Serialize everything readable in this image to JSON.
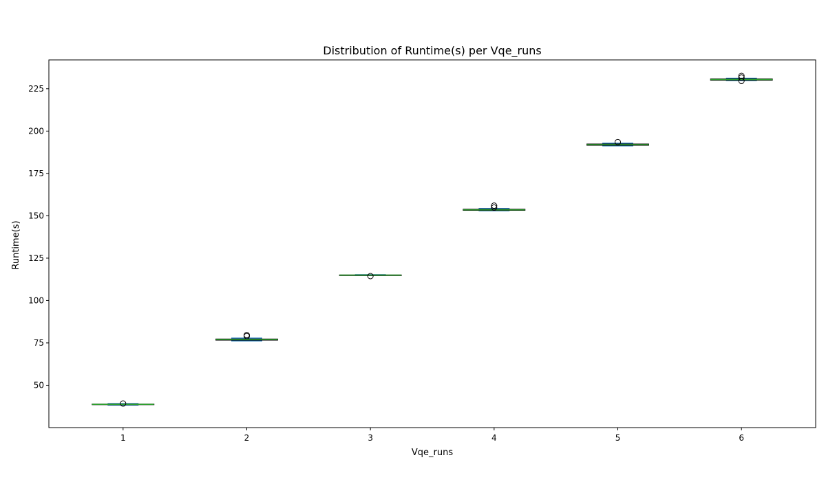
{
  "chart_data": {
    "type": "box",
    "title": "Distribution of Runtime(s) per Vqe_runs",
    "xlabel": "Vqe_runs",
    "ylabel": "Runtime(s)",
    "categories": [
      "1",
      "2",
      "3",
      "4",
      "5",
      "6"
    ],
    "ylim": [
      25,
      242
    ],
    "yticks": [
      50,
      75,
      100,
      125,
      150,
      175,
      200,
      225
    ],
    "grid": false,
    "colors": {
      "box": "#000000",
      "median": "#2ca02c",
      "whisker": "#1f77b4",
      "cap": "#1f77b4",
      "flier": "#000000"
    },
    "boxes": [
      {
        "category": "1",
        "min": 38.3,
        "q1": 38.5,
        "median": 38.7,
        "q3": 38.9,
        "max": 39.1,
        "fliers": [
          39.2
        ]
      },
      {
        "category": "2",
        "min": 76.2,
        "q1": 76.6,
        "median": 76.9,
        "q3": 77.3,
        "max": 77.8,
        "fliers": [
          79.0,
          79.6
        ]
      },
      {
        "category": "3",
        "min": 114.8,
        "q1": 114.9,
        "median": 115.0,
        "q3": 115.1,
        "max": 115.2,
        "fliers": [
          114.4
        ]
      },
      {
        "category": "4",
        "min": 153.0,
        "q1": 153.2,
        "median": 153.5,
        "q3": 153.9,
        "max": 154.3,
        "fliers": [
          154.9,
          156.0
        ]
      },
      {
        "category": "5",
        "min": 191.3,
        "q1": 191.6,
        "median": 192.0,
        "q3": 192.4,
        "max": 192.8,
        "fliers": [
          193.5
        ]
      },
      {
        "category": "6",
        "min": 229.8,
        "q1": 230.0,
        "median": 230.4,
        "q3": 230.8,
        "max": 231.2,
        "fliers": [
          229.6,
          231.6,
          232.6
        ]
      }
    ]
  }
}
